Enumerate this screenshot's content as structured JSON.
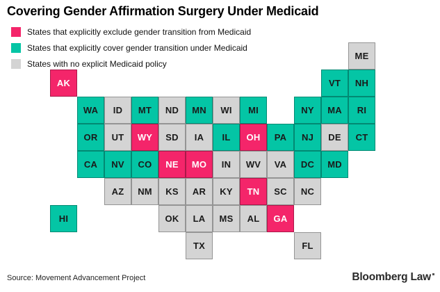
{
  "title": "Covering Gender Affirmation Surgery Under Medicaid",
  "colors": {
    "exclude": "#f4256a",
    "cover": "#04c5a5",
    "none": "#d4d4d4",
    "tile_text_dark": "#1a1a1a",
    "tile_text_light": "#ffffff"
  },
  "legend": {
    "items": [
      {
        "status": "exclude",
        "label": "States that explicitly exclude gender transition from Medicaid"
      },
      {
        "status": "cover",
        "label": "States that explicitly cover gender transition under Medicaid"
      },
      {
        "status": "none",
        "label": "States with no explicit Medicaid policy"
      }
    ]
  },
  "chart_data": {
    "type": "tile_grid_map",
    "title": "Covering Gender Affirmation Surgery Under Medicaid",
    "legend": [
      "States that explicitly exclude gender transition from Medicaid",
      "States that explicitly cover gender transition under Medicaid",
      "States with no explicit Medicaid policy"
    ],
    "states": [
      {
        "abbr": "ME",
        "col": 11,
        "row": 0,
        "status": "none"
      },
      {
        "abbr": "AK",
        "col": 0,
        "row": 1,
        "status": "exclude"
      },
      {
        "abbr": "VT",
        "col": 10,
        "row": 1,
        "status": "cover"
      },
      {
        "abbr": "NH",
        "col": 11,
        "row": 1,
        "status": "cover"
      },
      {
        "abbr": "WA",
        "col": 1,
        "row": 2,
        "status": "cover"
      },
      {
        "abbr": "ID",
        "col": 2,
        "row": 2,
        "status": "none"
      },
      {
        "abbr": "MT",
        "col": 3,
        "row": 2,
        "status": "cover"
      },
      {
        "abbr": "ND",
        "col": 4,
        "row": 2,
        "status": "none"
      },
      {
        "abbr": "MN",
        "col": 5,
        "row": 2,
        "status": "cover"
      },
      {
        "abbr": "WI",
        "col": 6,
        "row": 2,
        "status": "none"
      },
      {
        "abbr": "MI",
        "col": 7,
        "row": 2,
        "status": "cover"
      },
      {
        "abbr": "NY",
        "col": 9,
        "row": 2,
        "status": "cover"
      },
      {
        "abbr": "MA",
        "col": 10,
        "row": 2,
        "status": "cover"
      },
      {
        "abbr": "RI",
        "col": 11,
        "row": 2,
        "status": "cover"
      },
      {
        "abbr": "OR",
        "col": 1,
        "row": 3,
        "status": "cover"
      },
      {
        "abbr": "UT",
        "col": 2,
        "row": 3,
        "status": "none"
      },
      {
        "abbr": "WY",
        "col": 3,
        "row": 3,
        "status": "exclude"
      },
      {
        "abbr": "SD",
        "col": 4,
        "row": 3,
        "status": "none"
      },
      {
        "abbr": "IA",
        "col": 5,
        "row": 3,
        "status": "none"
      },
      {
        "abbr": "IL",
        "col": 6,
        "row": 3,
        "status": "cover"
      },
      {
        "abbr": "OH",
        "col": 7,
        "row": 3,
        "status": "exclude"
      },
      {
        "abbr": "PA",
        "col": 8,
        "row": 3,
        "status": "cover"
      },
      {
        "abbr": "NJ",
        "col": 9,
        "row": 3,
        "status": "cover"
      },
      {
        "abbr": "DE",
        "col": 10,
        "row": 3,
        "status": "none"
      },
      {
        "abbr": "CT",
        "col": 11,
        "row": 3,
        "status": "cover"
      },
      {
        "abbr": "CA",
        "col": 1,
        "row": 4,
        "status": "cover"
      },
      {
        "abbr": "NV",
        "col": 2,
        "row": 4,
        "status": "cover"
      },
      {
        "abbr": "CO",
        "col": 3,
        "row": 4,
        "status": "cover"
      },
      {
        "abbr": "NE",
        "col": 4,
        "row": 4,
        "status": "exclude"
      },
      {
        "abbr": "MO",
        "col": 5,
        "row": 4,
        "status": "exclude"
      },
      {
        "abbr": "IN",
        "col": 6,
        "row": 4,
        "status": "none"
      },
      {
        "abbr": "WV",
        "col": 7,
        "row": 4,
        "status": "none"
      },
      {
        "abbr": "VA",
        "col": 8,
        "row": 4,
        "status": "none"
      },
      {
        "abbr": "DC",
        "col": 9,
        "row": 4,
        "status": "cover"
      },
      {
        "abbr": "MD",
        "col": 10,
        "row": 4,
        "status": "cover"
      },
      {
        "abbr": "AZ",
        "col": 2,
        "row": 5,
        "status": "none"
      },
      {
        "abbr": "NM",
        "col": 3,
        "row": 5,
        "status": "none"
      },
      {
        "abbr": "KS",
        "col": 4,
        "row": 5,
        "status": "none"
      },
      {
        "abbr": "AR",
        "col": 5,
        "row": 5,
        "status": "none"
      },
      {
        "abbr": "KY",
        "col": 6,
        "row": 5,
        "status": "none"
      },
      {
        "abbr": "TN",
        "col": 7,
        "row": 5,
        "status": "exclude"
      },
      {
        "abbr": "SC",
        "col": 8,
        "row": 5,
        "status": "none"
      },
      {
        "abbr": "NC",
        "col": 9,
        "row": 5,
        "status": "none"
      },
      {
        "abbr": "HI",
        "col": 0,
        "row": 6,
        "status": "cover"
      },
      {
        "abbr": "OK",
        "col": 4,
        "row": 6,
        "status": "none"
      },
      {
        "abbr": "LA",
        "col": 5,
        "row": 6,
        "status": "none"
      },
      {
        "abbr": "MS",
        "col": 6,
        "row": 6,
        "status": "none"
      },
      {
        "abbr": "AL",
        "col": 7,
        "row": 6,
        "status": "none"
      },
      {
        "abbr": "GA",
        "col": 8,
        "row": 6,
        "status": "exclude"
      },
      {
        "abbr": "TX",
        "col": 5,
        "row": 7,
        "status": "none"
      },
      {
        "abbr": "FL",
        "col": 9,
        "row": 7,
        "status": "none"
      }
    ]
  },
  "source": "Source: Movement Advancement Project",
  "logo": "Bloomberg Law"
}
